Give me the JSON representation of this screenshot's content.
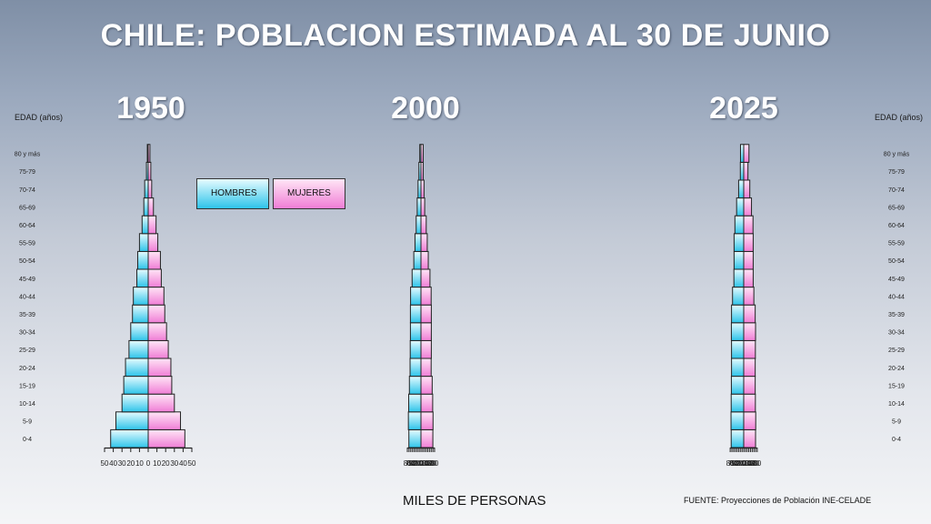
{
  "page": {
    "title": "CHILE: POBLACION ESTIMADA AL 30 DE JUNIO"
  },
  "labels": {
    "age_header": "EDAD (años)",
    "x_axis": "MILES DE PERSONAS",
    "source": "FUENTE: Proyecciones de Población INE-CELADE"
  },
  "colors": {
    "hombres_light": "#e6fbff",
    "hombres_dark": "#2ec4ea",
    "mujeres_light": "#ffe6f6",
    "mujeres_dark": "#f07ed6",
    "outline": "#222222"
  },
  "chart_data": [
    {
      "type": "bar",
      "title": "1950",
      "orientation": "population-pyramid",
      "categories": [
        "0-4",
        "5-9",
        "10-14",
        "15-19",
        "20-24",
        "25-29",
        "30-34",
        "35-39",
        "40-44",
        "45-49",
        "50-54",
        "55-59",
        "60-64",
        "65-69",
        "70-74",
        "75-79",
        "80 y más"
      ],
      "series": [
        {
          "name": "HOMBRES",
          "values": [
            43,
            37,
            30,
            28,
            26,
            22,
            20,
            18,
            17,
            13,
            12,
            10,
            7,
            5,
            4,
            2,
            1
          ]
        },
        {
          "name": "MUJERES",
          "values": [
            42,
            37,
            30,
            27,
            26,
            23,
            21,
            19,
            18,
            15,
            14,
            11,
            9,
            6,
            4,
            3,
            2
          ]
        }
      ],
      "xlim": [
        -50,
        50
      ],
      "ticks": [
        "50",
        "40",
        "30",
        "20",
        "10",
        "0",
        "10",
        "20",
        "30",
        "40",
        "50"
      ]
    },
    {
      "type": "bar",
      "title": "2000",
      "orientation": "population-pyramid",
      "categories": [
        "0-4",
        "5-9",
        "10-14",
        "15-19",
        "20-24",
        "25-29",
        "30-34",
        "35-39",
        "40-44",
        "45-49",
        "50-54",
        "55-59",
        "60-64",
        "65-69",
        "70-74",
        "75-79",
        "80 y más"
      ],
      "series": [
        {
          "name": "HOMBRES",
          "values": [
            71,
            74,
            72,
            68,
            64,
            63,
            62,
            62,
            61,
            52,
            42,
            35,
            28,
            22,
            17,
            12,
            7
          ]
        },
        {
          "name": "MUJERES",
          "values": [
            70,
            71,
            69,
            66,
            60,
            61,
            61,
            61,
            60,
            53,
            43,
            37,
            31,
            22,
            18,
            13,
            13
          ]
        }
      ],
      "xlim": [
        -80,
        80
      ],
      "ticks": [
        "80",
        "70",
        "60",
        "50",
        "40",
        "30",
        "20",
        "10",
        "0",
        "10",
        "20",
        "30",
        "40",
        "50",
        "60",
        "70",
        "80"
      ]
    },
    {
      "type": "bar",
      "title": "2025",
      "orientation": "population-pyramid",
      "categories": [
        "0-4",
        "5-9",
        "10-14",
        "15-19",
        "20-24",
        "25-29",
        "30-34",
        "35-39",
        "40-44",
        "45-49",
        "50-54",
        "55-59",
        "60-64",
        "65-69",
        "70-74",
        "75-79",
        "80 y más"
      ],
      "series": [
        {
          "name": "HOMBRES",
          "values": [
            74,
            75,
            74,
            73,
            72,
            72,
            73,
            72,
            66,
            58,
            57,
            57,
            52,
            42,
            30,
            20,
            19
          ]
        },
        {
          "name": "MUJERES",
          "values": [
            70,
            71,
            69,
            68,
            68,
            69,
            70,
            68,
            60,
            56,
            56,
            56,
            55,
            46,
            36,
            25,
            31
          ]
        }
      ],
      "xlim": [
        -80,
        80
      ],
      "ticks": [
        "80",
        "70",
        "60",
        "50",
        "40",
        "30",
        "20",
        "10",
        "0",
        "10",
        "20",
        "30",
        "40",
        "50",
        "60",
        "70",
        "80"
      ]
    }
  ],
  "legend": {
    "hombres": "HOMBRES",
    "mujeres": "MUJERES"
  },
  "age_ticks_left": [
    "80 y más",
    "75-79",
    "70-74",
    "65-69",
    "60-64",
    "55-59",
    "50-54",
    "45-49",
    "40-44",
    "35-39",
    "30-34",
    "25-29",
    "20-24",
    "15-19",
    "10-14",
    "5-9",
    "0-4"
  ],
  "age_ticks_right": [
    "80 y más",
    "75-79",
    "70-74",
    "65-69",
    "60-64",
    "55-59",
    "50-54",
    "45-49",
    "40-44",
    "35-39",
    "30-34",
    "25-29",
    "20-24",
    "15-19",
    "10-14",
    "5-9",
    "0-4"
  ]
}
